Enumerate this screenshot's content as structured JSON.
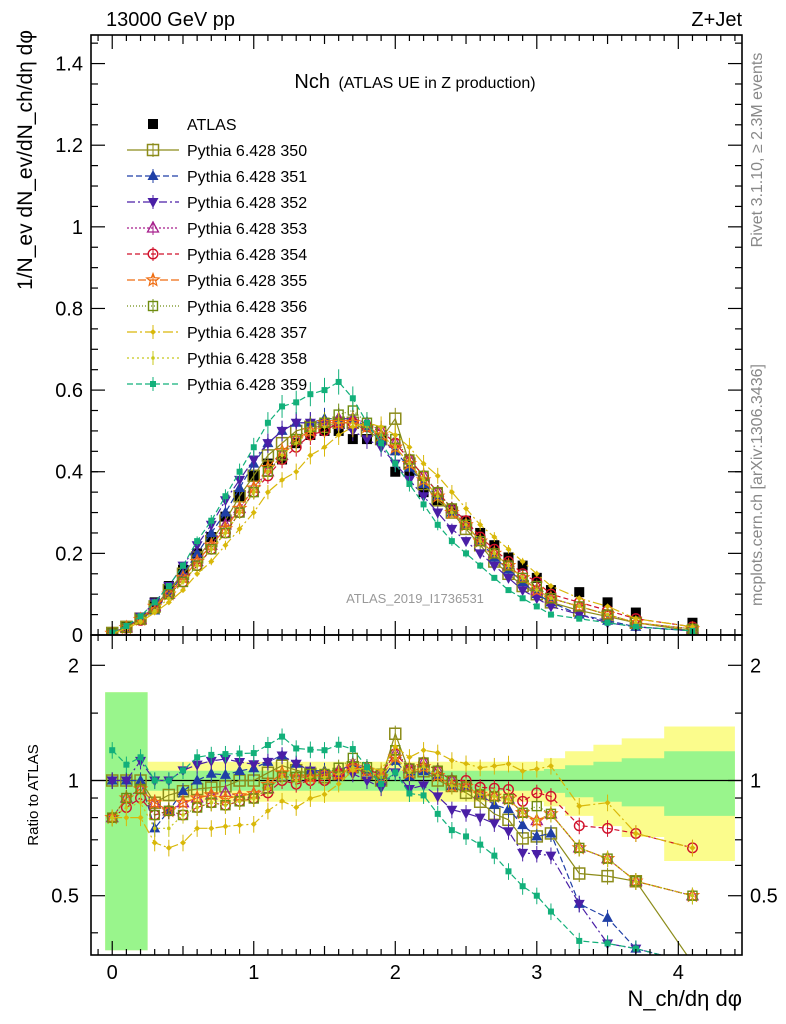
{
  "header": {
    "left": "13000 GeV pp",
    "right": "Z+Jet"
  },
  "side_labels": {
    "rivet": "Rivet 3.1.10, ≥ 2.3M events",
    "mcplots": "mcplots.cern.ch [arXiv:1306.3436]"
  },
  "chart_data": [
    {
      "type": "scatter",
      "panel": "main",
      "title": "Nch",
      "subtitle": "(ATLAS UE in Z production)",
      "ylabel": "1/N_ev dN_ev/dN_ch/dη dφ",
      "ylim": [
        0,
        1.47
      ],
      "yticks": [
        "0",
        "0.2",
        "0.4",
        "0.6",
        "0.8",
        "1",
        "1.2",
        "1.4"
      ],
      "watermark": "ATLAS_2019_I1736531",
      "x": [
        0.0,
        0.1,
        0.2,
        0.3,
        0.4,
        0.5,
        0.6,
        0.7,
        0.8,
        0.9,
        1.0,
        1.1,
        1.2,
        1.3,
        1.4,
        1.5,
        1.6,
        1.7,
        1.8,
        1.9,
        2.0,
        2.1,
        2.2,
        2.3,
        2.4,
        2.5,
        2.6,
        2.7,
        2.8,
        2.9,
        3.0,
        3.1,
        3.3,
        3.5,
        3.7,
        4.1
      ],
      "series": [
        {
          "name": "ATLAS",
          "color": "#000000",
          "marker": "square-filled",
          "line": "none",
          "values": [
            0.005,
            0.02,
            0.04,
            0.08,
            0.12,
            0.16,
            0.2,
            0.24,
            0.29,
            0.34,
            0.39,
            0.42,
            0.43,
            0.47,
            0.49,
            0.5,
            0.5,
            0.48,
            0.48,
            0.48,
            0.4,
            0.4,
            0.35,
            0.33,
            0.31,
            0.28,
            0.25,
            0.22,
            0.19,
            0.17,
            0.14,
            0.11,
            0.105,
            0.08,
            0.055,
            0.03
          ]
        },
        {
          "name": "Pythia 6.428 350",
          "color": "#8c8c1a",
          "marker": "square-open-large",
          "dash": "",
          "values": [
            0.005,
            0.02,
            0.04,
            0.07,
            0.11,
            0.15,
            0.19,
            0.23,
            0.28,
            0.34,
            0.39,
            0.44,
            0.47,
            0.5,
            0.51,
            0.51,
            0.52,
            0.52,
            0.5,
            0.48,
            0.53,
            0.42,
            0.37,
            0.33,
            0.3,
            0.26,
            0.22,
            0.18,
            0.15,
            0.12,
            0.1,
            0.08,
            0.06,
            0.045,
            0.03,
            0.01
          ]
        },
        {
          "name": "Pythia 6.428 351",
          "color": "#1f3fa6",
          "marker": "triangle-up-filled",
          "dash": "6,3",
          "values": [
            0.005,
            0.02,
            0.04,
            0.06,
            0.1,
            0.15,
            0.2,
            0.25,
            0.3,
            0.36,
            0.42,
            0.47,
            0.5,
            0.52,
            0.52,
            0.53,
            0.53,
            0.53,
            0.51,
            0.48,
            0.45,
            0.41,
            0.37,
            0.34,
            0.3,
            0.27,
            0.23,
            0.19,
            0.16,
            0.13,
            0.1,
            0.08,
            0.05,
            0.035,
            0.02,
            0.01
          ]
        },
        {
          "name": "Pythia 6.428 352",
          "color": "#4a1fa6",
          "marker": "triangle-down-filled",
          "dash": "8,3,2,3",
          "values": [
            0.005,
            0.02,
            0.045,
            0.08,
            0.12,
            0.17,
            0.22,
            0.27,
            0.33,
            0.38,
            0.43,
            0.47,
            0.5,
            0.52,
            0.52,
            0.52,
            0.51,
            0.5,
            0.48,
            0.46,
            0.42,
            0.38,
            0.34,
            0.3,
            0.26,
            0.23,
            0.2,
            0.17,
            0.14,
            0.11,
            0.09,
            0.07,
            0.05,
            0.03,
            0.02,
            0.01
          ]
        },
        {
          "name": "Pythia 6.428 353",
          "color": "#a61f8c",
          "marker": "triangle-up-open",
          "dash": "2,2",
          "values": [
            0.004,
            0.018,
            0.038,
            0.07,
            0.1,
            0.14,
            0.18,
            0.22,
            0.27,
            0.31,
            0.36,
            0.4,
            0.44,
            0.48,
            0.5,
            0.52,
            0.53,
            0.53,
            0.52,
            0.5,
            0.47,
            0.43,
            0.39,
            0.35,
            0.31,
            0.27,
            0.23,
            0.2,
            0.17,
            0.14,
            0.11,
            0.09,
            0.07,
            0.05,
            0.03,
            0.015
          ]
        },
        {
          "name": "Pythia 6.428 354",
          "color": "#d0102a",
          "marker": "circle-open",
          "dash": "5,3",
          "values": [
            0.004,
            0.017,
            0.036,
            0.065,
            0.1,
            0.13,
            0.17,
            0.21,
            0.25,
            0.3,
            0.35,
            0.39,
            0.43,
            0.46,
            0.49,
            0.5,
            0.52,
            0.52,
            0.51,
            0.5,
            0.47,
            0.43,
            0.39,
            0.35,
            0.31,
            0.28,
            0.24,
            0.21,
            0.18,
            0.15,
            0.13,
            0.1,
            0.08,
            0.06,
            0.04,
            0.02
          ]
        },
        {
          "name": "Pythia 6.428 355",
          "color": "#ef6c10",
          "marker": "star-open",
          "dash": "8,3",
          "values": [
            0.004,
            0.018,
            0.038,
            0.07,
            0.1,
            0.14,
            0.18,
            0.22,
            0.26,
            0.31,
            0.36,
            0.41,
            0.45,
            0.48,
            0.5,
            0.52,
            0.52,
            0.52,
            0.51,
            0.49,
            0.46,
            0.42,
            0.38,
            0.34,
            0.3,
            0.27,
            0.23,
            0.2,
            0.17,
            0.14,
            0.11,
            0.09,
            0.07,
            0.05,
            0.03,
            0.015
          ]
        },
        {
          "name": "Pythia 6.428 356",
          "color": "#6f8c10",
          "marker": "square-open",
          "dash": "1,2",
          "values": [
            0.004,
            0.018,
            0.038,
            0.065,
            0.1,
            0.13,
            0.17,
            0.21,
            0.25,
            0.3,
            0.35,
            0.4,
            0.44,
            0.48,
            0.51,
            0.52,
            0.54,
            0.55,
            0.52,
            0.5,
            0.48,
            0.43,
            0.39,
            0.35,
            0.31,
            0.27,
            0.23,
            0.2,
            0.17,
            0.14,
            0.12,
            0.09,
            0.07,
            0.05,
            0.03,
            0.015
          ]
        },
        {
          "name": "Pythia 6.428 357",
          "color": "#d9b80a",
          "marker": "diamond-small",
          "dash": "10,3,2,3",
          "values": [
            0.004,
            0.016,
            0.032,
            0.055,
            0.08,
            0.11,
            0.15,
            0.18,
            0.22,
            0.26,
            0.3,
            0.35,
            0.38,
            0.4,
            0.44,
            0.46,
            0.49,
            0.51,
            0.52,
            0.51,
            0.49,
            0.46,
            0.42,
            0.39,
            0.35,
            0.31,
            0.27,
            0.24,
            0.21,
            0.18,
            0.15,
            0.12,
            0.09,
            0.07,
            0.04,
            0.02
          ]
        },
        {
          "name": "Pythia 6.428 358",
          "color": "#c8c81a",
          "marker": "dot",
          "dash": "2,3",
          "values": [
            0.004,
            0.017,
            0.035,
            0.06,
            0.09,
            0.13,
            0.17,
            0.21,
            0.25,
            0.3,
            0.35,
            0.4,
            0.44,
            0.47,
            0.5,
            0.51,
            0.52,
            0.52,
            0.51,
            0.49,
            0.46,
            0.42,
            0.38,
            0.34,
            0.3,
            0.27,
            0.23,
            0.2,
            0.17,
            0.14,
            0.11,
            0.09,
            0.07,
            0.05,
            0.03,
            0.015
          ]
        },
        {
          "name": "Pythia 6.428 359",
          "color": "#12b07a",
          "marker": "square-small-filled",
          "dash": "6,3",
          "values": [
            0.006,
            0.022,
            0.046,
            0.08,
            0.12,
            0.17,
            0.23,
            0.28,
            0.34,
            0.4,
            0.46,
            0.52,
            0.56,
            0.57,
            0.59,
            0.6,
            0.62,
            0.58,
            0.52,
            0.47,
            0.42,
            0.37,
            0.32,
            0.27,
            0.23,
            0.2,
            0.17,
            0.14,
            0.11,
            0.09,
            0.07,
            0.05,
            0.04,
            0.03,
            0.02,
            0.01
          ]
        }
      ]
    },
    {
      "type": "scatter",
      "panel": "ratio",
      "ylabel": "Ratio to ATLAS",
      "xlabel": "N_ch/dη dφ",
      "xlim": [
        -0.15,
        4.45
      ],
      "xticks": [
        "0",
        "1",
        "2",
        "3",
        "4"
      ],
      "ylim": [
        0.35,
        2.4
      ],
      "yscale": "log",
      "yticks": [
        "0.5",
        "1",
        "2"
      ],
      "bands": {
        "inner_color": "#99f58c",
        "outer_color": "#fbfc8c"
      },
      "note": "Ratio of each Pythia series to ATLAS, same x values as main panel"
    }
  ]
}
